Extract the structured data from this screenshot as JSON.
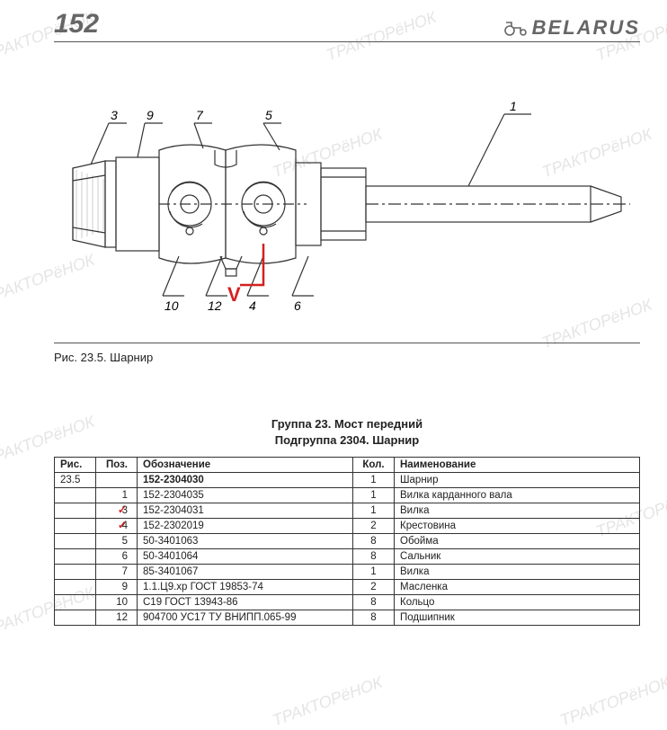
{
  "header": {
    "page_number": "152",
    "brand": "BELARUS"
  },
  "watermark_text": "ТРАКТОРёНОК",
  "diagram": {
    "callouts_top": [
      "3",
      "9",
      "7",
      "5",
      "1"
    ],
    "callouts_bottom": [
      "10",
      "12",
      "4",
      "6"
    ],
    "caption": "Рис. 23.5. Шарнир",
    "red_annotation": "V",
    "stroke": "#333",
    "red": "#d62020"
  },
  "section": {
    "line1": "Группа 23. Мост передний",
    "line2": "Подгруппа 2304. Шарнир"
  },
  "table": {
    "headers": {
      "fig": "Рис.",
      "pos": "Поз.",
      "des": "Обозначение",
      "qty": "Кол.",
      "name": "Наименование"
    },
    "fig_ref": "23.5",
    "rows": [
      {
        "pos": "",
        "des": "152-2304030",
        "qty": "1",
        "name": "Шарнир",
        "bold_des": true
      },
      {
        "pos": "1",
        "des": "152-2304035",
        "qty": "1",
        "name": "Вилка карданного вала"
      },
      {
        "pos": "3",
        "des": "152-2304031",
        "qty": "1",
        "name": "Вилка",
        "mark": true
      },
      {
        "pos": "4",
        "des": "152-2302019",
        "qty": "2",
        "name": "Крестовина",
        "mark": true
      },
      {
        "pos": "5",
        "des": "50-3401063",
        "qty": "8",
        "name": "Обойма"
      },
      {
        "pos": "6",
        "des": "50-3401064",
        "qty": "8",
        "name": "Сальник"
      },
      {
        "pos": "7",
        "des": "85-3401067",
        "qty": "1",
        "name": "Вилка"
      },
      {
        "pos": "9",
        "des": "1.1.Ц9.хр ГОСТ 19853-74",
        "qty": "2",
        "name": "Масленка"
      },
      {
        "pos": "10",
        "des": "С19 ГОСТ 13943-86",
        "qty": "8",
        "name": "Кольцо"
      },
      {
        "pos": "12",
        "des": "904700 УС17 ТУ ВНИПП.065-99",
        "qty": "8",
        "name": "Подшипник"
      }
    ]
  }
}
